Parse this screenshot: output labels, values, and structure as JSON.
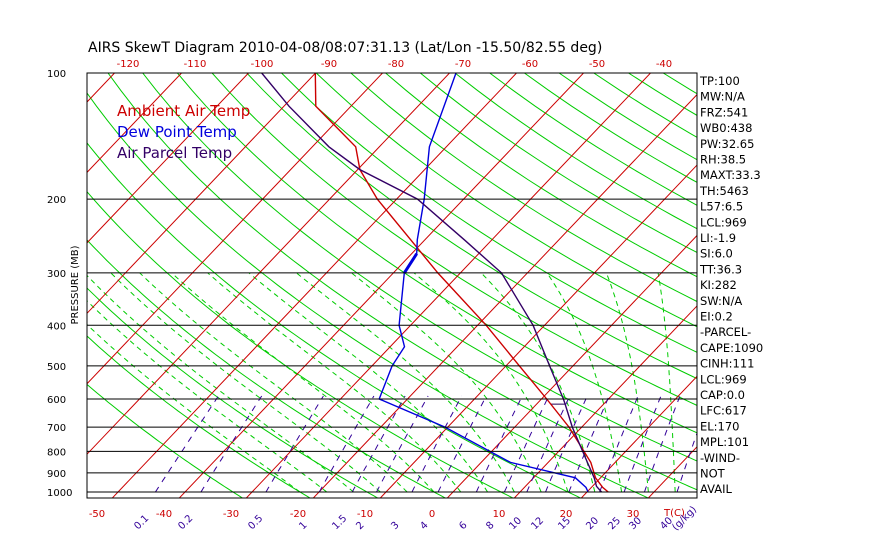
{
  "chart_data": {
    "type": "line",
    "title": "AIRS SkewT Diagram 2010-04-08/08:07:31.13 (Lat/Lon -15.50/82.55 deg)",
    "ylabel": "PRESSURE (MB)",
    "xlabel": "T(C)",
    "mixing_ratio_unit": "(g/kg)",
    "pressure_ticks": [
      100,
      200,
      300,
      400,
      500,
      600,
      700,
      800,
      900,
      1000
    ],
    "temp_ticks_bottom": [
      -50,
      -40,
      -30,
      -20,
      -10,
      0,
      10,
      20,
      30
    ],
    "temp_ticks_top": [
      -120,
      -110,
      -100,
      -90,
      -80,
      -70,
      -60,
      -50,
      -40
    ],
    "mixing_ratio_labels": [
      "0.1",
      "0.2",
      "0.5",
      "1",
      "1.5",
      "2",
      "3",
      "4",
      "6",
      "8",
      "10",
      "12",
      "15",
      "20",
      "25",
      "30",
      "40"
    ],
    "legend": [
      "Ambient Air Temp",
      "Dew Point Temp",
      "Air Parcel Temp"
    ],
    "colors": {
      "ambient": "#cc0000",
      "dewpoint": "#0000dd",
      "parcel": "#330066",
      "isotherm": "#cc0000",
      "dry_adiabat": "#00cc00",
      "moist_adiabat": "#00cc00",
      "mixing_ratio": "#330099",
      "hatch": "#220055",
      "isobar": "#000000"
    },
    "series": [
      {
        "name": "Ambient Air Temp",
        "points": [
          [
            1000,
            26
          ],
          [
            975,
            24.5
          ],
          [
            925,
            22
          ],
          [
            850,
            19
          ],
          [
            700,
            10.5
          ],
          [
            600,
            3
          ],
          [
            500,
            -6
          ],
          [
            400,
            -17
          ],
          [
            300,
            -32
          ],
          [
            250,
            -41
          ],
          [
            200,
            -52
          ],
          [
            170,
            -59
          ],
          [
            150,
            -63
          ],
          [
            120,
            -75
          ],
          [
            100,
            -80
          ]
        ]
      },
      {
        "name": "Dew Point Temp",
        "points": [
          [
            1000,
            23
          ],
          [
            975,
            22
          ],
          [
            925,
            19
          ],
          [
            850,
            7
          ],
          [
            700,
            -8
          ],
          [
            600,
            -22
          ],
          [
            500,
            -25
          ],
          [
            450,
            -26
          ],
          [
            400,
            -30
          ],
          [
            300,
            -37
          ],
          [
            270,
            -38
          ],
          [
            250,
            -40
          ],
          [
            200,
            -45
          ],
          [
            150,
            -52
          ],
          [
            100,
            -59
          ]
        ]
      },
      {
        "name": "Air Parcel Temp",
        "points": [
          [
            1000,
            25
          ],
          [
            969,
            23.4
          ],
          [
            925,
            21.8
          ],
          [
            850,
            18.5
          ],
          [
            700,
            11
          ],
          [
            617,
            6.5
          ],
          [
            600,
            5.5
          ],
          [
            500,
            -1.5
          ],
          [
            400,
            -10
          ],
          [
            300,
            -22.5
          ],
          [
            250,
            -33
          ],
          [
            200,
            -46
          ],
          [
            170,
            -59
          ],
          [
            150,
            -67
          ],
          [
            120,
            -79
          ],
          [
            100,
            -88
          ]
        ]
      }
    ],
    "parameters": [
      "TP:100",
      "MW:N/A",
      "FRZ:541",
      "WB0:438",
      "PW:32.65",
      "RH:38.5",
      "MAXT:33.3",
      "TH:5463",
      "L57:6.5",
      "LCL:969",
      "LI:-1.9",
      "SI:6.0",
      "TT:36.3",
      "KI:282",
      "SW:N/A",
      "EI:0.2",
      "-PARCEL-",
      "CAPE:1090",
      "CINH:111",
      "LCL:969",
      "CAP:0.0",
      "LFC:617",
      "EL:170",
      "MPL:101",
      "-WIND-",
      "NOT",
      "AVAIL"
    ]
  }
}
